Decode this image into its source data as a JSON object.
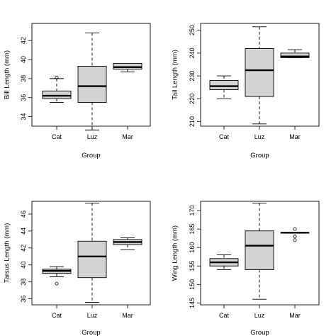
{
  "chart_data": [
    {
      "type": "box",
      "title": "",
      "xlabel": "Group",
      "ylabel": "Bill Length (mm)",
      "categories": [
        "Cat",
        "Luz",
        "Mar"
      ],
      "yticks": [
        "34",
        "36",
        "38",
        "40",
        "42"
      ],
      "ylim": [
        33.0,
        43.8
      ],
      "boxes": [
        {
          "min": 35.5,
          "q1": 35.9,
          "median": 36.2,
          "q3": 36.7,
          "max": 38.0,
          "outliers": [
            38.1
          ]
        },
        {
          "min": 32.6,
          "q1": 35.5,
          "median": 37.2,
          "q3": 39.3,
          "max": 42.8,
          "outliers": []
        },
        {
          "min": 38.7,
          "q1": 39.0,
          "median": 39.2,
          "q3": 39.6,
          "max": 39.6,
          "outliers": []
        }
      ]
    },
    {
      "type": "box",
      "title": "",
      "xlabel": "Group",
      "ylabel": "Tail Length (mm)",
      "categories": [
        "Cat",
        "Luz",
        "Mar"
      ],
      "yticks": [
        "210",
        "220",
        "230",
        "240",
        "250"
      ],
      "ylim": [
        208,
        253
      ],
      "boxes": [
        {
          "min": 220,
          "q1": 224,
          "median": 225.5,
          "q3": 228,
          "max": 230,
          "outliers": []
        },
        {
          "min": 209,
          "q1": 221,
          "median": 232.5,
          "q3": 242,
          "max": 251.5,
          "outliers": []
        },
        {
          "min": 238,
          "q1": 238,
          "median": 238.5,
          "q3": 240,
          "max": 241.5,
          "outliers": []
        }
      ]
    },
    {
      "type": "box",
      "title": "",
      "xlabel": "Group",
      "ylabel": "Tarsus Length (mm)",
      "categories": [
        "Cat",
        "Luz",
        "Mar"
      ],
      "yticks": [
        "36",
        "38",
        "40",
        "42",
        "44",
        "46"
      ],
      "ylim": [
        35.3,
        47.5
      ],
      "boxes": [
        {
          "min": 38.6,
          "q1": 39.0,
          "median": 39.3,
          "q3": 39.5,
          "max": 39.8,
          "outliers": [
            37.8
          ]
        },
        {
          "min": 35.6,
          "q1": 38.5,
          "median": 41.0,
          "q3": 42.8,
          "max": 47.3,
          "outliers": []
        },
        {
          "min": 41.8,
          "q1": 42.4,
          "median": 42.7,
          "q3": 43.0,
          "max": 43.2,
          "outliers": []
        }
      ]
    },
    {
      "type": "box",
      "title": "",
      "xlabel": "Group",
      "ylabel": "Wing Length (mm)",
      "categories": [
        "Cat",
        "Luz",
        "Mar"
      ],
      "yticks": [
        "145",
        "150",
        "155",
        "160",
        "165",
        "170"
      ],
      "ylim": [
        144.5,
        172.5
      ],
      "boxes": [
        {
          "min": 154,
          "q1": 155,
          "median": 156,
          "q3": 157,
          "max": 158,
          "outliers": []
        },
        {
          "min": 146,
          "q1": 154,
          "median": 160.5,
          "q3": 164.5,
          "max": 172,
          "outliers": []
        },
        {
          "min": 164,
          "q1": 164,
          "median": 164,
          "q3": 164,
          "max": 164,
          "outliers": [
            165,
            163,
            162
          ]
        }
      ]
    }
  ]
}
